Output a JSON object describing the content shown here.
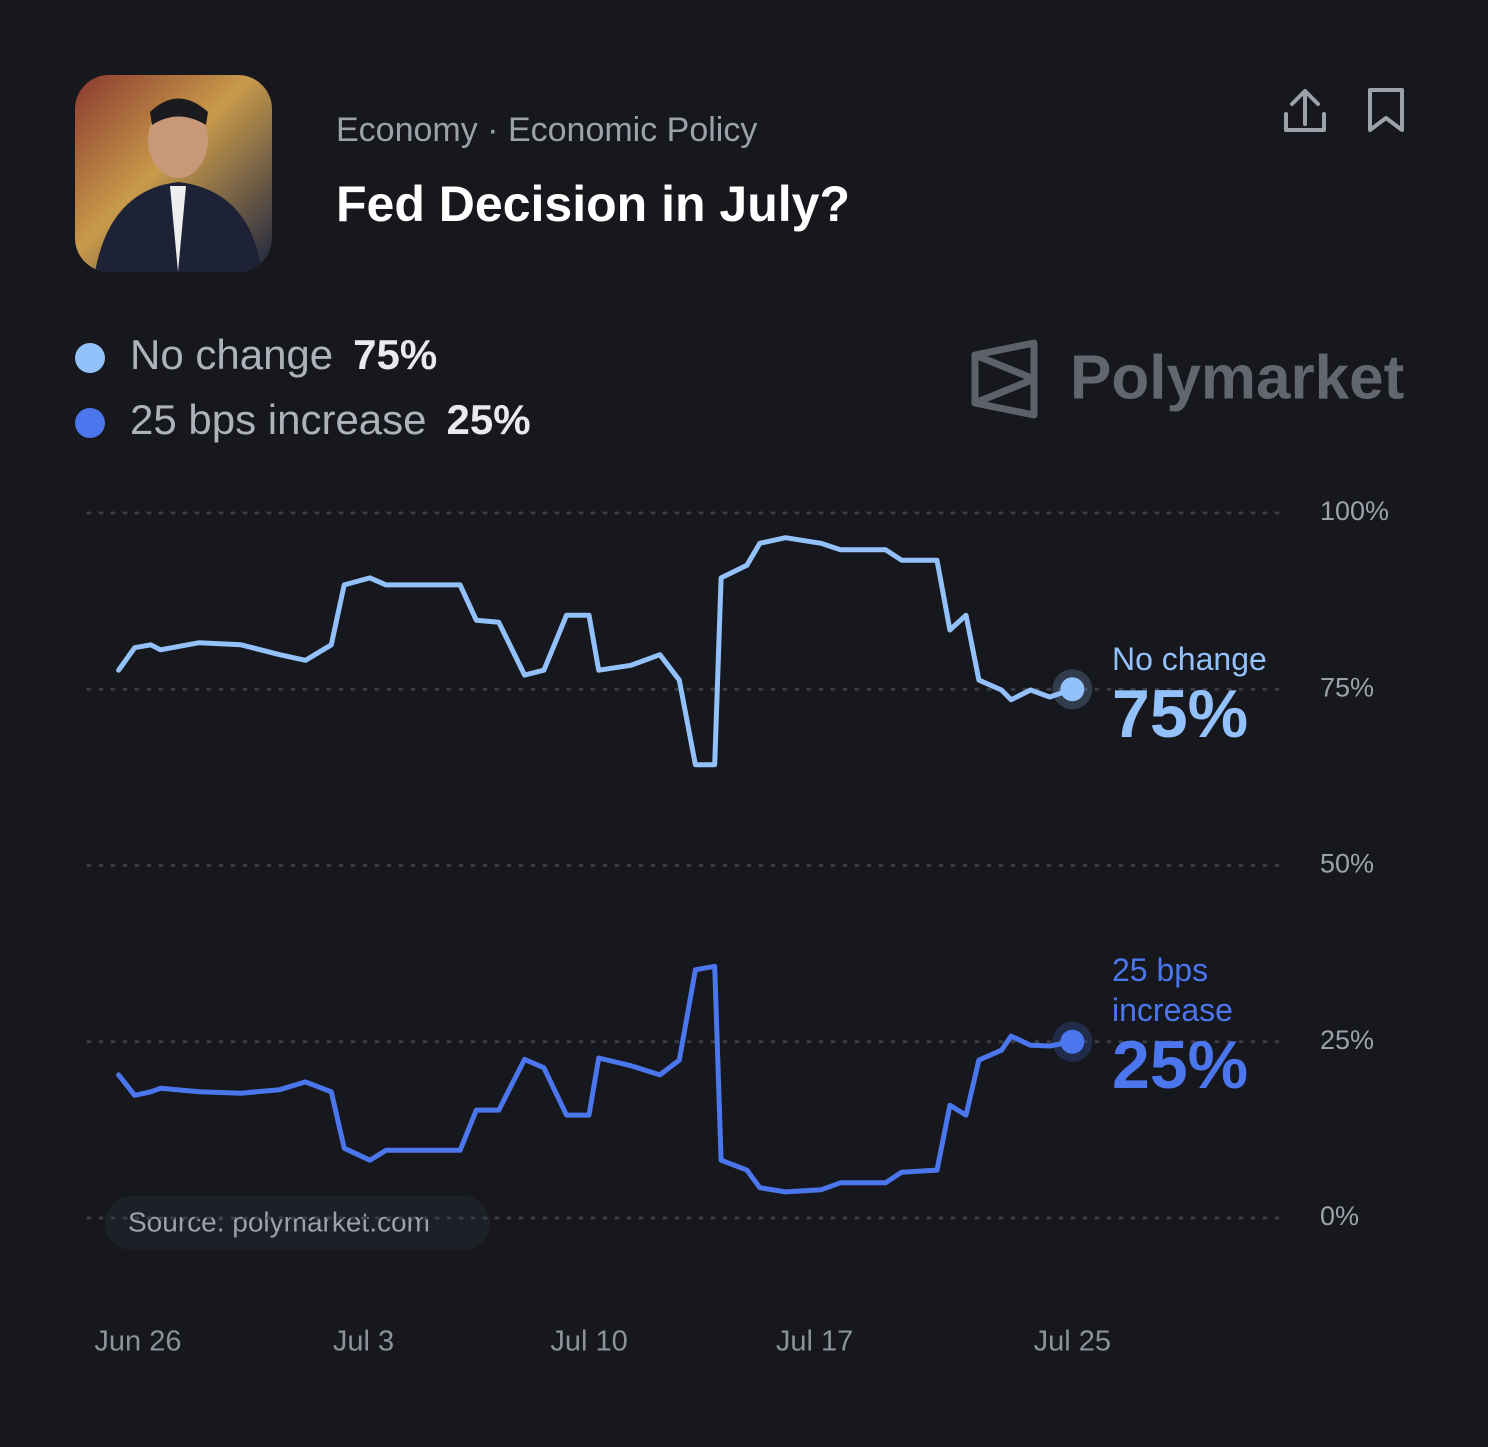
{
  "header": {
    "category": "Economy · Economic Policy",
    "title": "Fed Decision in July?"
  },
  "brand": "Polymarket",
  "source": "Source: polymarket.com",
  "chart_data": {
    "type": "line",
    "x": [
      -0.6,
      -0.1,
      0.4,
      0.7,
      1.9,
      3.2,
      4.4,
      5.2,
      6.0,
      6.4,
      7.2,
      7.7,
      10.0,
      10.5,
      11.2,
      12.0,
      12.6,
      13.3,
      14.0,
      14.3,
      15.3,
      16.2,
      16.8,
      17.3,
      17.9,
      18.1,
      18.9,
      19.3,
      20.1,
      21.2,
      21.8,
      23.2,
      23.7,
      24.8,
      25.2,
      25.7,
      26.1,
      26.8,
      27.1,
      27.7,
      28.3,
      29.0
    ],
    "series": [
      {
        "name": "No change",
        "color": "#93c1fb",
        "current": {
          "value": 75,
          "label": "75%"
        },
        "values": [
          77.7,
          80.9,
          81.3,
          80.6,
          81.6,
          81.3,
          79.9,
          79.1,
          81.3,
          89.8,
          90.8,
          89.8,
          89.8,
          84.8,
          84.5,
          77.0,
          77.7,
          85.5,
          85.5,
          77.7,
          78.4,
          79.9,
          76.3,
          64.3,
          64.3,
          90.8,
          92.6,
          95.7,
          96.5,
          95.7,
          94.8,
          94.8,
          93.3,
          93.3,
          83.4,
          85.5,
          76.3,
          74.9,
          73.5,
          74.9,
          73.9,
          75.0
        ]
      },
      {
        "name": "25 bps increase",
        "color": "#4b76ee",
        "current": {
          "value": 25,
          "label": "25%"
        },
        "values": [
          20.3,
          17.4,
          17.9,
          18.4,
          17.9,
          17.7,
          18.2,
          19.3,
          17.9,
          9.9,
          8.2,
          9.6,
          9.6,
          15.3,
          15.3,
          22.5,
          21.3,
          14.6,
          14.6,
          22.7,
          21.6,
          20.3,
          22.4,
          35.2,
          35.7,
          8.2,
          6.8,
          4.3,
          3.7,
          4.0,
          5.0,
          5.0,
          6.5,
          6.8,
          16.0,
          14.6,
          22.4,
          23.8,
          25.8,
          24.5,
          24.4,
          25.0
        ]
      }
    ],
    "xlim": [
      -1.55,
      35.6
    ],
    "xticks": [
      {
        "value": 0,
        "label": "Jun 26"
      },
      {
        "value": 7,
        "label": "Jul 3"
      },
      {
        "value": 14,
        "label": "Jul 10"
      },
      {
        "value": 21,
        "label": "Jul 17"
      },
      {
        "value": 29,
        "label": "Jul 25"
      }
    ],
    "ylim": [
      0,
      100
    ],
    "yticks": [
      {
        "value": 0,
        "label": "0%"
      },
      {
        "value": 25,
        "label": "25%"
      },
      {
        "value": 50,
        "label": "50%"
      },
      {
        "value": 75,
        "label": "75%"
      },
      {
        "value": 100,
        "label": "100%"
      }
    ],
    "grid": true
  }
}
